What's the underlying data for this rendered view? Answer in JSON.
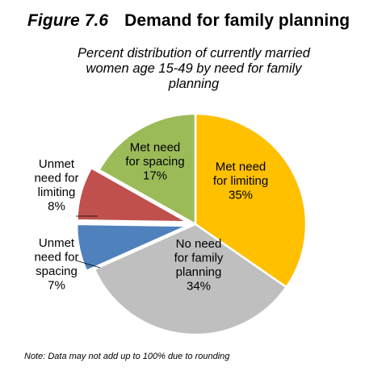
{
  "figure": {
    "number": "Figure 7.6",
    "title": "Demand for family planning",
    "subtitle_lines": [
      "Percent distribution of currently married",
      "women age 15-49 by need for family",
      "planning"
    ],
    "note": "Note: Data may not add up to 100% due to rounding"
  },
  "chart_data": {
    "type": "pie",
    "title": "Demand for family planning",
    "subtitle": "Percent distribution of currently married women age 15-49 by need for family planning",
    "unit": "%",
    "slices": [
      {
        "label_lines": [
          "Met need",
          "for limiting",
          "35%"
        ],
        "label": "Met need for limiting",
        "value": 35,
        "color": "#ffc000",
        "exploded": false
      },
      {
        "label_lines": [
          "No need",
          "for family",
          "planning",
          "34%"
        ],
        "label": "No need for family planning",
        "value": 34,
        "color": "#bfbfbf",
        "exploded": false
      },
      {
        "label_lines": [
          "Unmet",
          "need for",
          "spacing",
          "7%"
        ],
        "label": "Unmet need for spacing",
        "value": 7,
        "color": "#4f81bd",
        "exploded": true
      },
      {
        "label_lines": [
          "Unmet",
          "need for",
          "limiting",
          "8%"
        ],
        "label": "Unmet need for limiting",
        "value": 8,
        "color": "#c0504d",
        "exploded": true
      },
      {
        "label_lines": [
          "Met need",
          "for spacing",
          "17%"
        ],
        "label": "Met need for spacing",
        "value": 17,
        "color": "#9bbb59",
        "exploded": false
      }
    ],
    "legend": "none"
  }
}
